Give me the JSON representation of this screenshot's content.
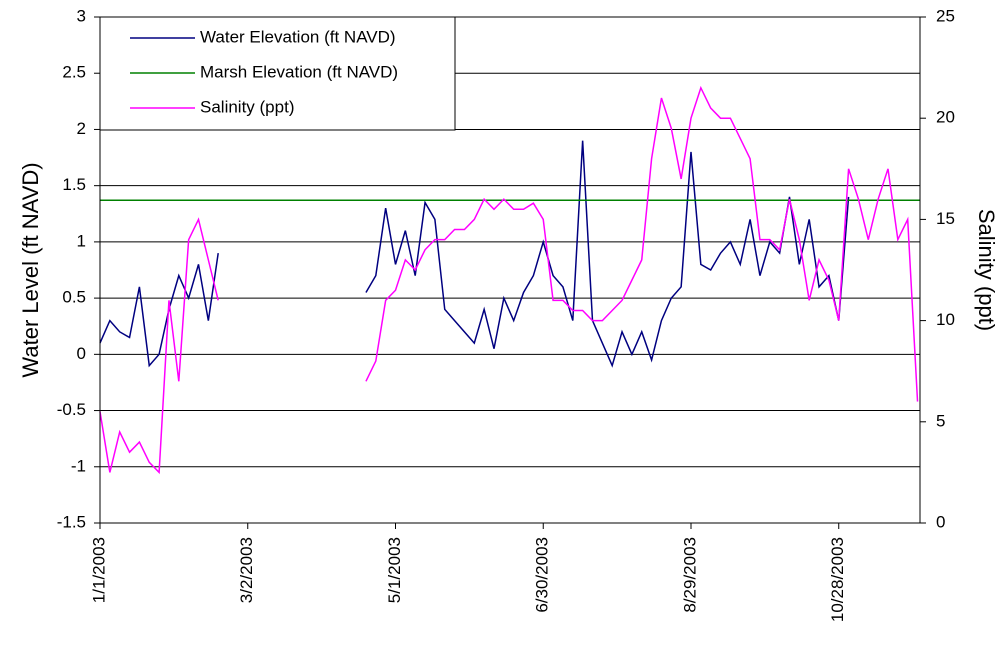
{
  "chart_data": {
    "type": "line",
    "y_label": "Water Level (ft NAVD)",
    "y2_label": "Salinity (ppt)",
    "x": [
      "2003-01-01",
      "2003-01-05",
      "2003-01-09",
      "2003-01-13",
      "2003-01-17",
      "2003-01-21",
      "2003-01-25",
      "2003-01-29",
      "2003-02-02",
      "2003-02-06",
      "2003-02-10",
      "2003-02-14",
      "2003-02-18",
      "2003-02-22",
      "2003-02-26",
      "2003-03-02",
      "2003-03-06",
      "2003-03-10",
      "2003-03-14",
      "2003-03-18",
      "2003-03-22",
      "2003-03-26",
      "2003-03-30",
      "2003-04-03",
      "2003-04-07",
      "2003-04-11",
      "2003-04-15",
      "2003-04-19",
      "2003-04-23",
      "2003-04-27",
      "2003-05-01",
      "2003-05-05",
      "2003-05-09",
      "2003-05-13",
      "2003-05-17",
      "2003-05-21",
      "2003-05-25",
      "2003-05-29",
      "2003-06-02",
      "2003-06-06",
      "2003-06-10",
      "2003-06-14",
      "2003-06-18",
      "2003-06-22",
      "2003-06-26",
      "2003-06-30",
      "2003-07-04",
      "2003-07-08",
      "2003-07-12",
      "2003-07-16",
      "2003-07-20",
      "2003-07-24",
      "2003-07-28",
      "2003-08-01",
      "2003-08-05",
      "2003-08-09",
      "2003-08-13",
      "2003-08-17",
      "2003-08-21",
      "2003-08-25",
      "2003-08-29",
      "2003-09-02",
      "2003-09-06",
      "2003-09-10",
      "2003-09-14",
      "2003-09-18",
      "2003-09-22",
      "2003-09-26",
      "2003-09-30",
      "2003-10-04",
      "2003-10-08",
      "2003-10-12",
      "2003-10-16",
      "2003-10-20",
      "2003-10-24",
      "2003-10-28",
      "2003-11-01",
      "2003-11-05",
      "2003-11-09",
      "2003-11-13",
      "2003-11-17",
      "2003-11-21",
      "2003-11-25",
      "2003-11-29"
    ],
    "series": [
      {
        "name": "Water Elevation (ft NAVD)",
        "color": "#000080",
        "values": [
          0.1,
          0.3,
          0.2,
          0.15,
          0.6,
          -0.1,
          0.0,
          0.4,
          0.7,
          0.5,
          0.8,
          0.3,
          0.9,
          null,
          null,
          null,
          null,
          null,
          null,
          null,
          null,
          null,
          null,
          null,
          null,
          null,
          null,
          0.55,
          0.7,
          1.3,
          0.8,
          1.1,
          0.7,
          1.35,
          1.2,
          0.4,
          0.3,
          0.2,
          0.1,
          0.4,
          0.05,
          0.5,
          0.3,
          0.55,
          0.7,
          1.0,
          0.7,
          0.6,
          0.3,
          1.9,
          0.3,
          0.1,
          -0.1,
          0.2,
          0.0,
          0.2,
          -0.05,
          0.3,
          0.5,
          0.6,
          1.8,
          0.8,
          0.75,
          0.9,
          1.0,
          0.8,
          1.2,
          0.7,
          1.0,
          0.9,
          1.4,
          0.8,
          1.2,
          0.6,
          0.7,
          0.3,
          1.4,
          null,
          null,
          null,
          null,
          null,
          null,
          null
        ]
      },
      {
        "name": "Marsh Elevation (ft NAVD)",
        "color": "#008000",
        "value": 1.37
      },
      {
        "name": "Salinity (ppt)",
        "color": "#ff00ff",
        "axis": "y2",
        "values": [
          5.5,
          2.5,
          4.5,
          3.5,
          4,
          3,
          2.5,
          11,
          7,
          14,
          15,
          13,
          11,
          null,
          null,
          null,
          null,
          null,
          null,
          null,
          null,
          null,
          null,
          null,
          null,
          null,
          null,
          7,
          8,
          11,
          11.5,
          13,
          12.5,
          13.5,
          14,
          14,
          14.5,
          14.5,
          15,
          16,
          15.5,
          16,
          15.5,
          15.5,
          15.8,
          15,
          11,
          11,
          10.5,
          10.5,
          10,
          10,
          10.5,
          11,
          12,
          13,
          18,
          21,
          19.5,
          17,
          20,
          21.5,
          20.5,
          20,
          20,
          19,
          18,
          14,
          14,
          13.5,
          16,
          14,
          11,
          13,
          12,
          10,
          17.5,
          16,
          14,
          16,
          17.5,
          14,
          15,
          6
        ]
      }
    ],
    "xlim": [
      "2003-01-01",
      "2003-11-30"
    ],
    "xticks": [
      {
        "value": "2003-01-01",
        "label": "1/1/2003"
      },
      {
        "value": "2003-03-02",
        "label": "3/2/2003"
      },
      {
        "value": "2003-05-01",
        "label": "5/1/2003"
      },
      {
        "value": "2003-06-30",
        "label": "6/30/2003"
      },
      {
        "value": "2003-08-29",
        "label": "8/29/2003"
      },
      {
        "value": "2003-10-28",
        "label": "10/28/2003"
      }
    ],
    "ylim": [
      -1.5,
      3
    ],
    "yticks": [
      -1.5,
      -1,
      -0.5,
      0,
      0.5,
      1,
      1.5,
      2,
      2.5,
      3
    ],
    "y2lim": [
      0,
      25
    ],
    "y2ticks": [
      0,
      5,
      10,
      15,
      20,
      25
    ],
    "grid": true,
    "legend": "upper left"
  }
}
